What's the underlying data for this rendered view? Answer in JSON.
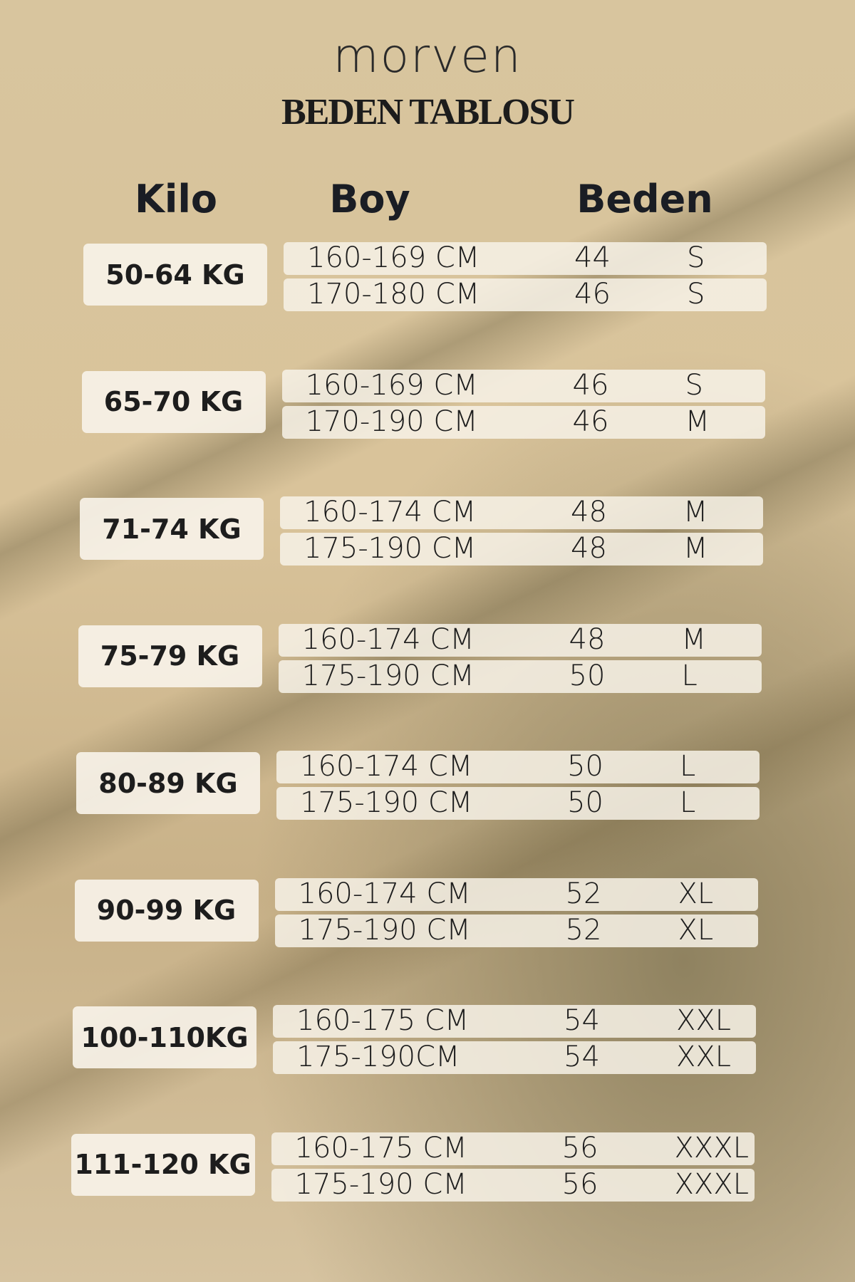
{
  "brand": "morven",
  "title": "BEDEN TABLOSU",
  "headers": {
    "kilo": "Kilo",
    "boy": "Boy",
    "beden": "Beden"
  },
  "groups": [
    {
      "kilo": "50-64 KG",
      "rows": [
        {
          "boy": "160-169 CM",
          "size": "44",
          "letter": "S"
        },
        {
          "boy": "170-180 CM",
          "size": "46",
          "letter": "S"
        }
      ]
    },
    {
      "kilo": "65-70 KG",
      "rows": [
        {
          "boy": "160-169 CM",
          "size": "46",
          "letter": "S"
        },
        {
          "boy": "170-190 CM",
          "size": "46",
          "letter": "M"
        }
      ]
    },
    {
      "kilo": "71-74 KG",
      "rows": [
        {
          "boy": "160-174 CM",
          "size": "48",
          "letter": "M"
        },
        {
          "boy": "175-190 CM",
          "size": "48",
          "letter": "M"
        }
      ]
    },
    {
      "kilo": "75-79 KG",
      "rows": [
        {
          "boy": "160-174 CM",
          "size": "48",
          "letter": "M"
        },
        {
          "boy": "175-190 CM",
          "size": "50",
          "letter": "L"
        }
      ]
    },
    {
      "kilo": "80-89 KG",
      "rows": [
        {
          "boy": "160-174 CM",
          "size": "50",
          "letter": "L"
        },
        {
          "boy": "175-190 CM",
          "size": "50",
          "letter": "L"
        }
      ]
    },
    {
      "kilo": "90-99 KG",
      "rows": [
        {
          "boy": "160-174 CM",
          "size": "52",
          "letter": "XL"
        },
        {
          "boy": "175-190 CM",
          "size": "52",
          "letter": "XL"
        }
      ]
    },
    {
      "kilo": "100-110KG",
      "rows": [
        {
          "boy": "160-175 CM",
          "size": "54",
          "letter": "XXL"
        },
        {
          "boy": "175-190CM",
          "size": "54",
          "letter": "XXL"
        }
      ]
    },
    {
      "kilo": "111-120 KG",
      "rows": [
        {
          "boy": "160-175 CM",
          "size": "56",
          "letter": "XXXL"
        },
        {
          "boy": "175-190 CM",
          "size": "56",
          "letter": "XXXL"
        }
      ]
    }
  ]
}
